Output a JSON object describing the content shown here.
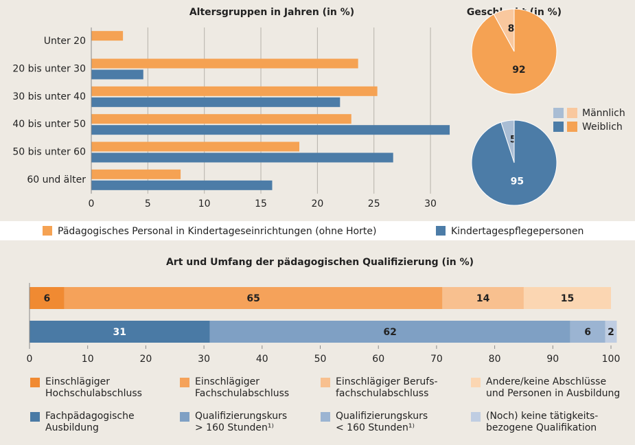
{
  "chart_data": [
    {
      "type": "hbar",
      "title": "Altersgruppen in Jahren (in %)",
      "categories": [
        "Unter 20",
        "20 bis unter 30",
        "30 bis unter 40",
        "40 bis unter 50",
        "50 bis unter 60",
        "60 und älter"
      ],
      "series": [
        {
          "name": "Pädagogisches Personal in Kindertageseinrichtungen (ohne Horte)",
          "color": "#f5a253",
          "values": [
            2.8,
            23.6,
            25.3,
            23.0,
            18.4,
            7.9
          ]
        },
        {
          "name": "Kindertagespflegepersonen",
          "color": "#4c7ca7",
          "values": [
            null,
            4.6,
            22.0,
            31.7,
            26.7,
            16.0
          ]
        }
      ],
      "xlim": [
        0,
        32
      ],
      "xticks": [
        0,
        5,
        10,
        15,
        20,
        25,
        30
      ],
      "grid": true
    },
    {
      "type": "pie",
      "title": "Geschlecht (in %)",
      "categories": [
        "Männlich",
        "Weiblich"
      ],
      "series": [
        {
          "colors": [
            "#f9c89e",
            "#f5a253"
          ],
          "values": [
            8,
            92
          ]
        },
        {
          "colors": [
            "#a9bdd4",
            "#4c7ca7"
          ],
          "values": [
            5,
            95
          ]
        }
      ]
    },
    {
      "type": "stacked_hbar",
      "title": "Art und Umfang der pädagogischen Qualifizierung (in %)",
      "categories": [
        null,
        null
      ],
      "series": [
        {
          "name": "Einschlägiger\nHochschulabschluss",
          "color": "#f08a32",
          "values": [
            6,
            null
          ]
        },
        {
          "name": "Einschlägiger\nFachschulabschluss",
          "color": "#f5a25a",
          "values": [
            65,
            null
          ]
        },
        {
          "name": "Einschlägiger Berufs-\nfachschulabschluss",
          "color": "#f8c08f",
          "values": [
            14,
            null
          ]
        },
        {
          "name": "Andere/keine Abschlüsse\nund Personen in Ausbildung",
          "color": "#fbd6b2",
          "values": [
            15,
            null
          ]
        },
        {
          "name": "Fachpädagogische\nAusbildung",
          "color": "#4a7aa5",
          "values": [
            null,
            31
          ]
        },
        {
          "name": "Qualifizierungskurs\n> 160 Stunden¹⁾",
          "color": "#7fa0c4",
          "values": [
            null,
            62
          ]
        },
        {
          "name": "Qualifizierungskurs\n< 160 Stunden¹⁾",
          "color": "#9bb4d2",
          "values": [
            null,
            6
          ]
        },
        {
          "name": "(Noch) keine tätigkeits-\nbezogene Qualifikation",
          "color": "#bfcde2",
          "values": [
            null,
            2
          ]
        }
      ],
      "xlim": [
        0,
        100
      ],
      "xticks": [
        0,
        10,
        20,
        30,
        40,
        50,
        60,
        70,
        80,
        90,
        100
      ]
    }
  ]
}
